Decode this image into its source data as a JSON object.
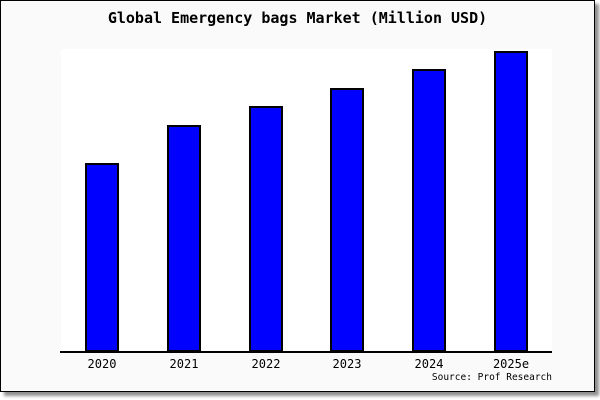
{
  "title": "Global Emergency bags Market (Million USD)",
  "source": "Source: Prof Research",
  "colors": {
    "bar_fill": "#0000ff",
    "bar_border": "#000000",
    "panel_bg": "#fafafa",
    "plot_bg": "#ffffff",
    "axis": "#000000",
    "text": "#000000"
  },
  "chart_data": {
    "type": "bar",
    "title": "Global Emergency bags Market (Million USD)",
    "categories": [
      "2020",
      "2021",
      "2022",
      "2023",
      "2024",
      "2025e"
    ],
    "values": [
      189,
      227,
      246,
      264,
      283,
      301
    ],
    "xlabel": "",
    "ylabel": "",
    "ylim": [
      0,
      303
    ],
    "y_axis_visible": false,
    "grid": false,
    "legend": false,
    "bar_color": "#0000ff",
    "source": "Source: Prof Research",
    "note": "No y-axis scale is shown in the chart; values are relative units estimated from bar pixel heights"
  }
}
